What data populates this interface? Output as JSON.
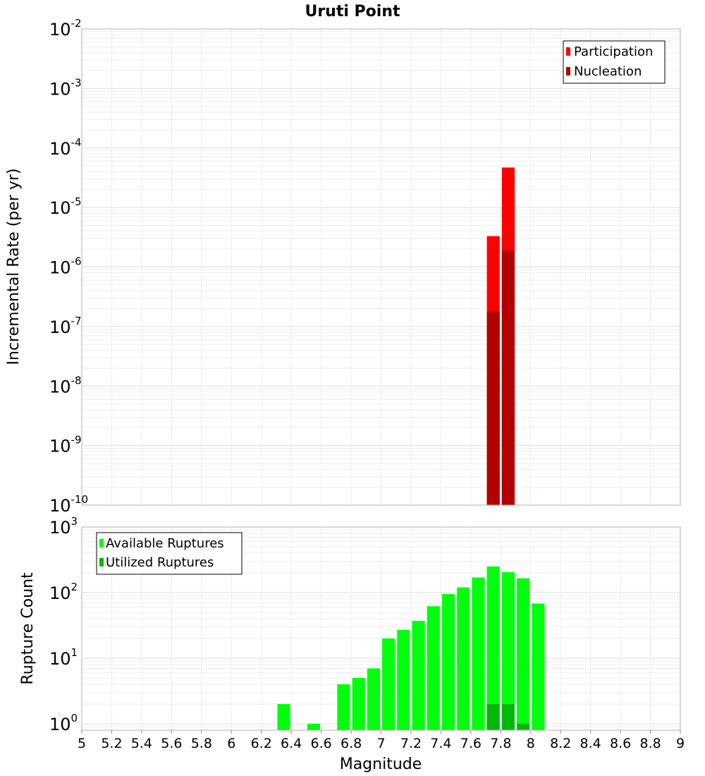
{
  "chart_data": [
    {
      "type": "bar",
      "title": "Uruti Point",
      "ylabel": "Incremental Rate (per yr)",
      "xlabel": "",
      "yscale": "log",
      "ylim": [
        1e-10,
        0.01
      ],
      "xlim": [
        5,
        9
      ],
      "bin_width": 0.1,
      "ytick_exponents": [
        "-2",
        "-3",
        "-4",
        "-5",
        "-6",
        "-7",
        "-8",
        "-9",
        "-10"
      ],
      "grid": true,
      "legend_position": "top-right",
      "series": [
        {
          "name": "Participation",
          "color": "#ff0000",
          "x": [
            7.75,
            7.85
          ],
          "values": [
            3.3e-06,
            4.7e-05
          ]
        },
        {
          "name": "Nucleation",
          "color": "#b30000",
          "x": [
            7.75,
            7.85
          ],
          "values": [
            1.8e-07,
            1.9e-06
          ]
        }
      ]
    },
    {
      "type": "bar",
      "ylabel": "Rupture Count",
      "xlabel": "Magnitude",
      "yscale": "log",
      "ylim": [
        0.8,
        1000
      ],
      "xlim": [
        5,
        9
      ],
      "bin_width": 0.1,
      "ytick_exponents": [
        "3",
        "2",
        "1",
        "0"
      ],
      "xticks": [
        "5",
        "5.2",
        "5.4",
        "5.6",
        "5.8",
        "6",
        "6.2",
        "6.4",
        "6.6",
        "6.8",
        "7",
        "7.2",
        "7.4",
        "7.6",
        "7.8",
        "8",
        "8.2",
        "8.4",
        "8.6",
        "8.8",
        "9"
      ],
      "grid": true,
      "legend_position": "top-left",
      "series": [
        {
          "name": "Available Ruptures",
          "color": "#00ff0d",
          "x": [
            6.35,
            6.55,
            6.75,
            6.85,
            6.95,
            7.05,
            7.15,
            7.25,
            7.35,
            7.45,
            7.55,
            7.65,
            7.75,
            7.85,
            7.95,
            8.05
          ],
          "values": [
            2,
            1,
            4,
            5,
            7,
            20,
            27,
            37,
            62,
            95,
            120,
            170,
            250,
            205,
            165,
            68
          ]
        },
        {
          "name": "Utilized Ruptures",
          "color": "#00b80a",
          "x": [
            7.75,
            7.85,
            7.95
          ],
          "values": [
            2,
            2,
            1
          ]
        }
      ]
    }
  ]
}
